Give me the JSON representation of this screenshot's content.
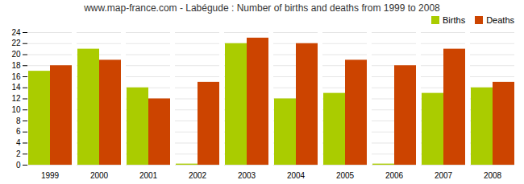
{
  "chart_data": {
    "type": "bar",
    "title": "www.map-france.com - Labégude : Number of births and deaths from 1999 to 2008",
    "categories": [
      "1999",
      "2000",
      "2001",
      "2002",
      "2003",
      "2004",
      "2005",
      "2006",
      "2007",
      "2008"
    ],
    "series": [
      {
        "name": "Births",
        "color": "#aacc00",
        "values": [
          17,
          21,
          14,
          0.2,
          22,
          12,
          13,
          0.2,
          13,
          14
        ]
      },
      {
        "name": "Deaths",
        "color": "#cc4400",
        "values": [
          18,
          19,
          12,
          15,
          23,
          22,
          19,
          18,
          21,
          15
        ]
      }
    ],
    "ylim": [
      0,
      24
    ],
    "yticks": [
      0,
      2,
      4,
      6,
      8,
      10,
      12,
      14,
      16,
      18,
      20,
      22,
      24
    ],
    "grid": true,
    "legend": "upper right"
  }
}
